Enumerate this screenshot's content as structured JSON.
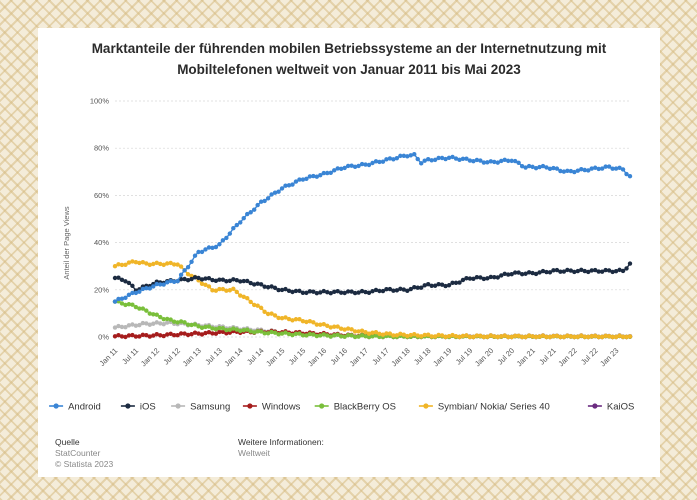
{
  "chart_data": {
    "type": "line",
    "title_line1": "Marktanteile der führenden mobilen Betriebssysteme an der Internetnutzung mit",
    "title_line2": "Mobiltelefonen weltweit von Januar 2011 bis Mai 2023",
    "ylabel": "Anteil der Page Views",
    "ylim": [
      0,
      100
    ],
    "yticks": [
      "0%",
      "20%",
      "40%",
      "60%",
      "80%",
      "100%"
    ],
    "xticks": [
      "Jan 11",
      "Jul 11",
      "Jan 12",
      "Jul 12",
      "Jan 13",
      "Jul 13",
      "Jan 14",
      "Jul 14",
      "Jan 15",
      "Jul 15",
      "Jan 16",
      "Jul 16",
      "Jan 17",
      "Jul 17",
      "Jan 18",
      "Jul 18",
      "Jan 19",
      "Jul 19",
      "Jan 20",
      "Jul 20",
      "Jan 21",
      "Jul 21",
      "Jan 22",
      "Jul 22",
      "Jan 23"
    ],
    "x_start": "Jan 2011",
    "n_months": 149,
    "series": [
      {
        "name": "Android",
        "color": "#3a85d5",
        "keypoints": [
          [
            0,
            15
          ],
          [
            6,
            19
          ],
          [
            12,
            22
          ],
          [
            18,
            24
          ],
          [
            20,
            28
          ],
          [
            24,
            36
          ],
          [
            30,
            39
          ],
          [
            36,
            49
          ],
          [
            42,
            57
          ],
          [
            48,
            63
          ],
          [
            54,
            67
          ],
          [
            60,
            69
          ],
          [
            66,
            72
          ],
          [
            72,
            73
          ],
          [
            78,
            75
          ],
          [
            84,
            77
          ],
          [
            86,
            77
          ],
          [
            88,
            74
          ],
          [
            90,
            75
          ],
          [
            96,
            76
          ],
          [
            102,
            75
          ],
          [
            108,
            74
          ],
          [
            114,
            75
          ],
          [
            118,
            72
          ],
          [
            124,
            72
          ],
          [
            130,
            70
          ],
          [
            136,
            71
          ],
          [
            142,
            72
          ],
          [
            146,
            71
          ],
          [
            148,
            68
          ]
        ]
      },
      {
        "name": "iOS",
        "color": "#1c2b41",
        "keypoints": [
          [
            0,
            25
          ],
          [
            3,
            24
          ],
          [
            6,
            20
          ],
          [
            12,
            23
          ],
          [
            18,
            24
          ],
          [
            24,
            25
          ],
          [
            30,
            24
          ],
          [
            36,
            24
          ],
          [
            42,
            22
          ],
          [
            48,
            20
          ],
          [
            54,
            19
          ],
          [
            60,
            19
          ],
          [
            66,
            19
          ],
          [
            72,
            19
          ],
          [
            78,
            20
          ],
          [
            84,
            20
          ],
          [
            90,
            22
          ],
          [
            96,
            22
          ],
          [
            102,
            25
          ],
          [
            108,
            25
          ],
          [
            114,
            27
          ],
          [
            120,
            27
          ],
          [
            126,
            28
          ],
          [
            132,
            28
          ],
          [
            138,
            28
          ],
          [
            146,
            28
          ],
          [
            148,
            31
          ]
        ]
      },
      {
        "name": "Samsung",
        "color": "#b8b8b8",
        "keypoints": [
          [
            0,
            4
          ],
          [
            8,
            5.5
          ],
          [
            16,
            6
          ],
          [
            24,
            5
          ],
          [
            32,
            4
          ],
          [
            40,
            3
          ],
          [
            48,
            2
          ],
          [
            56,
            1
          ],
          [
            64,
            0.5
          ],
          [
            72,
            0.3
          ],
          [
            148,
            0.2
          ]
        ]
      },
      {
        "name": "Windows",
        "color": "#a51c1c",
        "keypoints": [
          [
            0,
            0.3
          ],
          [
            10,
            0.6
          ],
          [
            20,
            1.2
          ],
          [
            28,
            1.7
          ],
          [
            36,
            2.2
          ],
          [
            44,
            2.2
          ],
          [
            52,
            1.8
          ],
          [
            60,
            1.2
          ],
          [
            68,
            0.6
          ],
          [
            76,
            0.3
          ],
          [
            84,
            0.1
          ],
          [
            148,
            0
          ]
        ]
      },
      {
        "name": "BlackBerry OS",
        "color": "#7abf3b",
        "keypoints": [
          [
            0,
            15
          ],
          [
            3,
            14
          ],
          [
            6,
            13
          ],
          [
            9,
            11
          ],
          [
            12,
            9
          ],
          [
            16,
            7
          ],
          [
            20,
            6
          ],
          [
            24,
            4.5
          ],
          [
            30,
            3.5
          ],
          [
            36,
            3
          ],
          [
            42,
            2
          ],
          [
            48,
            1.5
          ],
          [
            54,
            1
          ],
          [
            60,
            0.7
          ],
          [
            66,
            0.5
          ],
          [
            72,
            0.3
          ],
          [
            80,
            0.1
          ],
          [
            148,
            0
          ]
        ]
      },
      {
        "name": "Symbian/ Nokia/ Series 40",
        "color": "#f0b528",
        "keypoints": [
          [
            0,
            30
          ],
          [
            6,
            32
          ],
          [
            9,
            31
          ],
          [
            14,
            31
          ],
          [
            18,
            31
          ],
          [
            20,
            28
          ],
          [
            24,
            24
          ],
          [
            28,
            20
          ],
          [
            34,
            20
          ],
          [
            36,
            18
          ],
          [
            40,
            14
          ],
          [
            44,
            10
          ],
          [
            48,
            8
          ],
          [
            54,
            7
          ],
          [
            60,
            5
          ],
          [
            64,
            4
          ],
          [
            68,
            3
          ],
          [
            72,
            2
          ],
          [
            80,
            1
          ],
          [
            90,
            0.6
          ],
          [
            100,
            0.3
          ],
          [
            110,
            0.2
          ],
          [
            148,
            0.1
          ]
        ]
      },
      {
        "name": "KaiOS",
        "color": "#6b2b80",
        "keypoints": [
          [
            102,
            0.2
          ],
          [
            148,
            0.2
          ]
        ]
      }
    ]
  },
  "legend": [
    {
      "name": "Android",
      "color": "#3a85d5"
    },
    {
      "name": "iOS",
      "color": "#1c2b41"
    },
    {
      "name": "Samsung",
      "color": "#b8b8b8"
    },
    {
      "name": "Windows",
      "color": "#a51c1c"
    },
    {
      "name": "BlackBerry OS",
      "color": "#7abf3b"
    },
    {
      "name": "Symbian/ Nokia/ Series 40",
      "color": "#f0b528"
    },
    {
      "name": "KaiOS",
      "color": "#6b2b80"
    }
  ],
  "footer": {
    "source_label": "Quelle",
    "source_line1": "StatCounter",
    "source_line2": "© Statista 2023",
    "info_label": "Weitere Informationen:",
    "info_value": "Weltweit"
  }
}
